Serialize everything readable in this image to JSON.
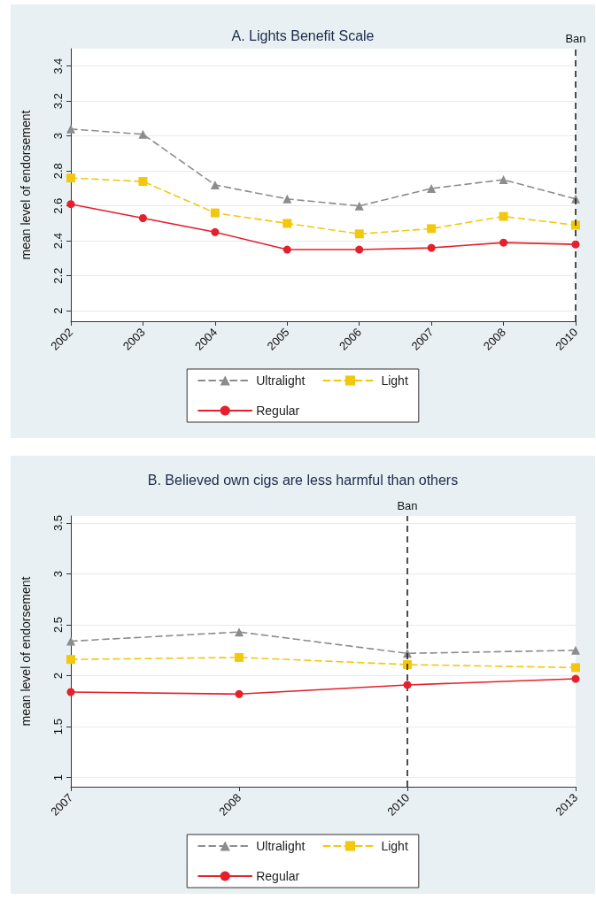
{
  "chart_data": [
    {
      "type": "line",
      "title": "A. Lights Benefit Scale",
      "ylabel": "mean level of endorsement",
      "categories": [
        "2002",
        "2003",
        "2004",
        "2005",
        "2006",
        "2007",
        "2008",
        "2010"
      ],
      "series": [
        {
          "name": "Ultralight",
          "color": "#8c8c8c",
          "marker": "triangle",
          "line_style": "dashed",
          "values": [
            3.04,
            3.01,
            2.72,
            2.64,
            2.6,
            2.7,
            2.75,
            2.64
          ]
        },
        {
          "name": "Light",
          "color": "#f2c80f",
          "marker": "square",
          "line_style": "dashed",
          "values": [
            2.76,
            2.74,
            2.56,
            2.5,
            2.44,
            2.47,
            2.54,
            2.49
          ]
        },
        {
          "name": "Regular",
          "color": "#e3202b",
          "marker": "circle",
          "line_style": "solid",
          "values": [
            2.61,
            2.53,
            2.45,
            2.35,
            2.35,
            2.36,
            2.39,
            2.38
          ]
        }
      ],
      "ylim": [
        1.94,
        3.5
      ],
      "yticks": [
        2,
        2.2,
        2.4,
        2.6,
        2.8,
        3,
        3.2,
        3.4
      ],
      "grid": "y",
      "legend": "bottom",
      "ref_lines": [
        {
          "axis": "x",
          "value": "2010",
          "label": "Ban",
          "color": "#222222",
          "line_style": "dashed"
        }
      ]
    },
    {
      "type": "line",
      "title": "B. Believed own cigs are less harmful than others",
      "ylabel": "mean level of endorsement",
      "categories": [
        "2007",
        "2008",
        "2010",
        "2013"
      ],
      "series": [
        {
          "name": "Ultralight",
          "color": "#8c8c8c",
          "marker": "triangle",
          "line_style": "dashed",
          "values": [
            2.34,
            2.43,
            2.22,
            2.25
          ]
        },
        {
          "name": "Light",
          "color": "#f2c80f",
          "marker": "square",
          "line_style": "dashed",
          "values": [
            2.16,
            2.18,
            2.11,
            2.08
          ]
        },
        {
          "name": "Regular",
          "color": "#e3202b",
          "marker": "circle",
          "line_style": "solid",
          "values": [
            1.84,
            1.82,
            1.91,
            1.97
          ]
        }
      ],
      "ylim": [
        0.91,
        3.57
      ],
      "yticks": [
        1,
        1.5,
        2,
        2.5,
        3,
        3.5
      ],
      "grid": "y",
      "legend": "bottom",
      "ref_lines": [
        {
          "axis": "x",
          "value": "2010",
          "label": "Ban",
          "color": "#222222",
          "line_style": "dashed"
        }
      ]
    }
  ]
}
